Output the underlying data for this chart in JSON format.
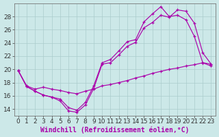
{
  "xlabel": "Windchill (Refroidissement éolien,°C)",
  "ylabel": "",
  "bg_color": "#cce8e8",
  "line_color": "#aa00aa",
  "xlim": [
    -0.5,
    23.5
  ],
  "ylim": [
    13.0,
    30.0
  ],
  "xticks": [
    0,
    1,
    2,
    3,
    4,
    5,
    6,
    7,
    8,
    9,
    10,
    11,
    12,
    13,
    14,
    15,
    16,
    17,
    18,
    19,
    20,
    21,
    22,
    23
  ],
  "yticks": [
    14,
    16,
    18,
    20,
    22,
    24,
    26,
    28
  ],
  "series1": {
    "x": [
      0,
      1,
      2,
      3,
      4,
      5,
      6,
      7,
      8,
      9,
      10,
      11,
      12,
      13,
      14,
      15,
      16,
      17,
      18,
      19,
      20,
      21,
      22,
      23
    ],
    "y": [
      19.8,
      17.4,
      16.7,
      16.1,
      15.8,
      15.2,
      13.7,
      13.5,
      14.6,
      17.1,
      20.8,
      21.0,
      22.2,
      23.5,
      24.1,
      26.3,
      27.1,
      28.2,
      27.9,
      29.0,
      28.8,
      27.0,
      22.5,
      20.8
    ]
  },
  "series2": {
    "x": [
      0,
      1,
      2,
      3,
      4,
      5,
      6,
      7,
      8,
      9,
      10,
      11,
      12,
      13,
      14,
      15,
      16,
      17,
      18,
      19,
      20,
      21,
      22,
      23
    ],
    "y": [
      19.8,
      17.4,
      16.7,
      16.1,
      15.8,
      15.5,
      14.2,
      13.8,
      15.0,
      17.5,
      21.0,
      21.5,
      22.8,
      24.2,
      24.5,
      27.2,
      28.4,
      29.5,
      28.0,
      28.2,
      27.5,
      25.0,
      21.0,
      20.5
    ]
  },
  "series3": {
    "x": [
      0,
      1,
      2,
      3,
      4,
      5,
      6,
      7,
      8,
      9,
      10,
      11,
      12,
      13,
      14,
      15,
      16,
      17,
      18,
      19,
      20,
      21,
      22,
      23
    ],
    "y": [
      19.8,
      17.5,
      17.0,
      17.3,
      17.0,
      16.8,
      16.5,
      16.3,
      16.7,
      17.0,
      17.5,
      17.7,
      18.0,
      18.3,
      18.7,
      19.0,
      19.4,
      19.7,
      20.0,
      20.2,
      20.5,
      20.7,
      21.0,
      20.8
    ]
  },
  "grid_color": "#aacccc",
  "tick_fontsize": 6.5,
  "label_fontsize": 7,
  "figsize": [
    3.2,
    2.0
  ],
  "dpi": 100
}
